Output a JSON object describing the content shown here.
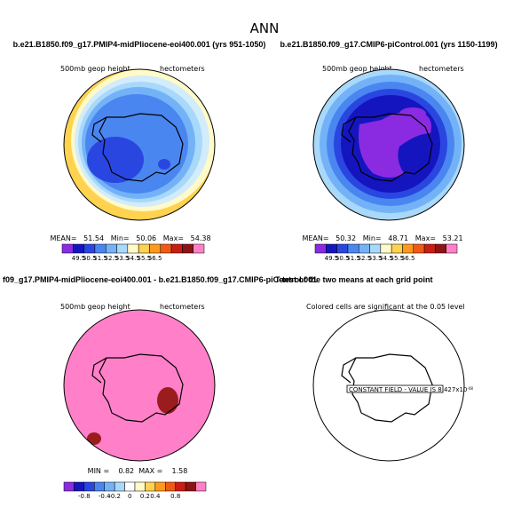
{
  "figure_title": "ANN",
  "panels": [
    {
      "title": "b.e21.B1850.f09_g17.PMIP4-midPliocene-eoi400.001 (yrs 951-1050)",
      "field": "500mb geop height",
      "units": "hectometers",
      "stats": "MEAN=   51.54   Min=   50.06   Max=   54.38"
    },
    {
      "title": "b.e21.B1850.f09_g17.CMIP6-piControl.001 (yrs 1150-1199)",
      "field": "500mb geop height",
      "units": "hectometers",
      "stats": "MEAN=   50.32   Min=   48.71   Max=   53.21"
    },
    {
      "title": "f09_g17.PMIP4-midPliocene-eoi400.001 - b.e21.B1850.f09_g17.CMIP6-piControl.001",
      "field": "500mb geop height",
      "units": "hectometers",
      "stats": "MIN =    0.82  MAX =    1.58"
    },
    {
      "title": "T-test of the two means at each grid point",
      "note": "Colored cells are significant at the 0.05 level",
      "constant_label": "CONSTANT FIELD - VALUE IS 8.427x10",
      "constant_exp": "-08"
    }
  ],
  "colorbar_abs": {
    "colors": [
      "#8a2be2",
      "#1515c0",
      "#2a46e0",
      "#4a86f0",
      "#74b2f8",
      "#a8d8fa",
      "#fffac8",
      "#ffd250",
      "#ff9a1e",
      "#f05a14",
      "#c81e14",
      "#8c1414",
      "#ff80c8"
    ],
    "labels": [
      "49.5",
      "50.5",
      "51.5",
      "52.5",
      "53.5",
      "54.5",
      "55.5",
      "56.5"
    ]
  },
  "colorbar_diff": {
    "colors": [
      "#8a2be2",
      "#1515c0",
      "#2a46e0",
      "#4a86f0",
      "#74b2f8",
      "#a8d8fa",
      "#ffffff",
      "#fffac8",
      "#ffd250",
      "#ff9a1e",
      "#f05a14",
      "#c81e14",
      "#8c1414",
      "#ff80c8"
    ],
    "labels": [
      "-0.8",
      "-0.4",
      "-0.2",
      "0",
      "0.2",
      "0.4",
      "0.8"
    ]
  },
  "chart_data": [
    {
      "type": "heatmap",
      "title": "b.e21.B1850.f09_g17.PMIP4-midPliocene-eoi400.001 (yrs 951-1050)",
      "mean": 51.54,
      "min": 50.06,
      "max": 54.38,
      "levels": [
        49.5,
        50.5,
        51.5,
        52.5,
        53.5,
        54.5,
        55.5,
        56.5
      ]
    },
    {
      "type": "heatmap",
      "title": "b.e21.B1850.f09_g17.CMIP6-piControl.001 (yrs 1150-1199)",
      "mean": 50.32,
      "min": 48.71,
      "max": 53.21,
      "levels": [
        49.5,
        50.5,
        51.5,
        52.5,
        53.5,
        54.5,
        55.5,
        56.5
      ]
    },
    {
      "type": "heatmap",
      "title": "f09_g17.PMIP4-midPliocene-eoi400.001 - b.e21.B1850.f09_g17.CMIP6-piControl.001",
      "min": 0.82,
      "max": 1.58,
      "levels": [
        -0.8,
        -0.4,
        -0.2,
        0,
        0.2,
        0.4,
        0.8
      ]
    },
    {
      "type": "heatmap",
      "title": "T-test of the two means at each grid point",
      "constant_value": 8.427e-08
    }
  ]
}
